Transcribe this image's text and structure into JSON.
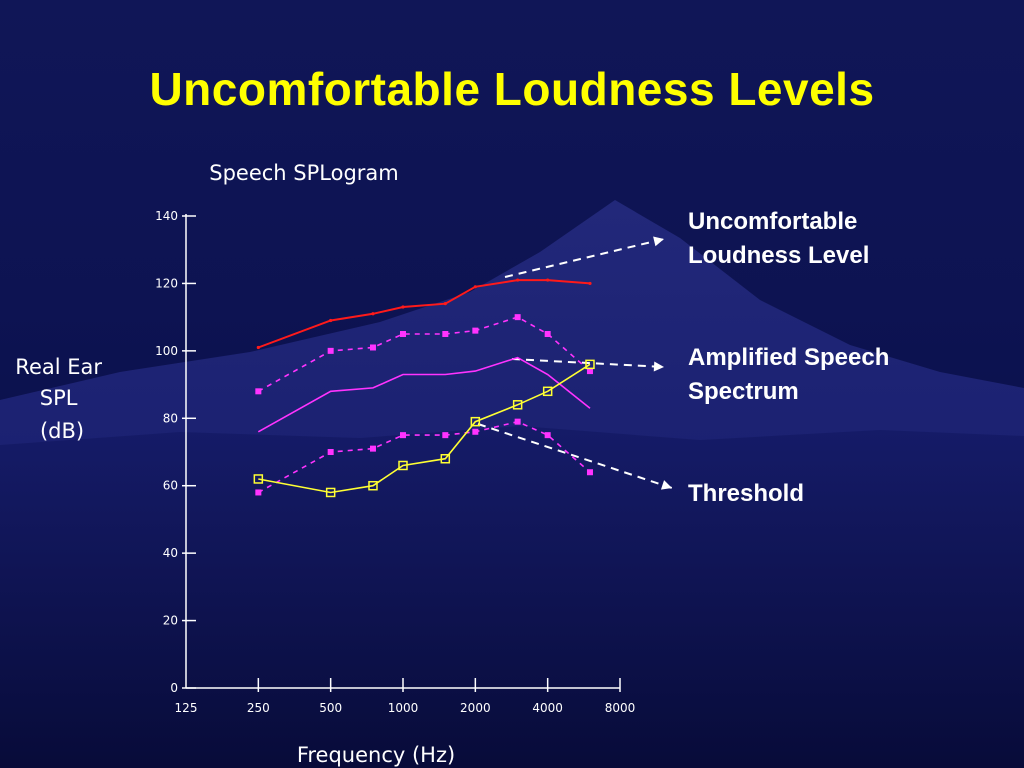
{
  "slide": {
    "title": "Uncomfortable Loudness Levels"
  },
  "annotations": {
    "ull_line1": "Uncomfortable",
    "ull_line2": "Loudness Level",
    "speech_line1": "Amplified Speech",
    "speech_line2": "Spectrum",
    "threshold": "Threshold"
  },
  "colors": {
    "background": "#0b0f4a",
    "title": "#ffff00",
    "ull": "#ff1a1a",
    "speech": "#ff33ff",
    "threshold": "#ffff33",
    "axis": "#ffffff"
  },
  "chart_data": {
    "type": "line",
    "title": "Speech SPLogram",
    "xlabel": "Frequency (Hz)",
    "ylabel": [
      "Real Ear",
      "SPL",
      "(dB)"
    ],
    "x_scale": "log",
    "x_ticks": [
      "125",
      "250",
      "500",
      "1000",
      "2000",
      "4000",
      "8000"
    ],
    "y_ticks": [
      "0",
      "20",
      "40",
      "60",
      "80",
      "100",
      "120",
      "140"
    ],
    "ylim": [
      0,
      140
    ],
    "xlim": [
      125,
      8000
    ],
    "legend": "none",
    "grid": false,
    "series": [
      {
        "id": "ull",
        "style": "solid",
        "marker": "small-dot",
        "color": "#ff1a1a",
        "x": [
          250,
          500,
          750,
          1000,
          1500,
          2000,
          3000,
          4000,
          6000
        ],
        "y": [
          101,
          109,
          111,
          113,
          114,
          119,
          121,
          121,
          120
        ]
      },
      {
        "id": "speech-peak",
        "style": "dashed",
        "marker": "square",
        "color": "#ff33ff",
        "x": [
          250,
          500,
          750,
          1000,
          1500,
          2000,
          3000,
          4000,
          6000
        ],
        "y": [
          88,
          100,
          101,
          105,
          105,
          106,
          110,
          105,
          94
        ]
      },
      {
        "id": "speech-average",
        "style": "solid",
        "marker": "none",
        "color": "#ff33ff",
        "x": [
          250,
          500,
          750,
          1000,
          1500,
          2000,
          3000,
          4000,
          6000
        ],
        "y": [
          76,
          88,
          89,
          93,
          93,
          94,
          98,
          93,
          83
        ]
      },
      {
        "id": "speech-min",
        "style": "dashed",
        "marker": "square",
        "color": "#ff33ff",
        "x": [
          250,
          500,
          750,
          1000,
          1500,
          2000,
          3000,
          4000,
          6000
        ],
        "y": [
          58,
          70,
          71,
          75,
          75,
          76,
          79,
          75,
          64
        ]
      },
      {
        "id": "threshold",
        "style": "solid",
        "marker": "open-square",
        "color": "#ffff33",
        "x": [
          250,
          500,
          750,
          1000,
          1500,
          2000,
          3000,
          4000,
          6000
        ],
        "y": [
          62,
          58,
          60,
          66,
          68,
          79,
          84,
          88,
          96
        ]
      }
    ]
  }
}
